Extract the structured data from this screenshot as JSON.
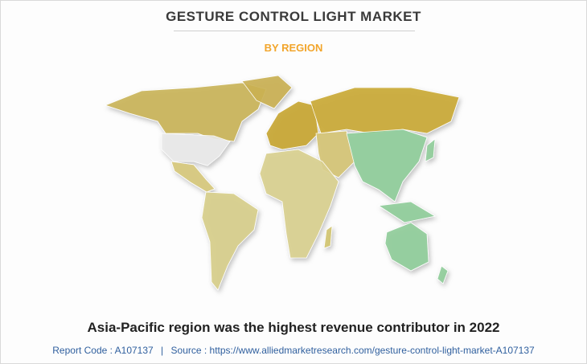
{
  "header": {
    "title": "GESTURE CONTROL LIGHT MARKET",
    "subtitle": "BY REGION"
  },
  "caption": "Asia-Pacific region was the highest revenue contributor in 2022",
  "footer": {
    "report_code": "Report Code : A107137",
    "separator": "|",
    "source": "Source : https://www.alliedmarketresearch.com/gesture-control-light-market-A107137"
  }
}
